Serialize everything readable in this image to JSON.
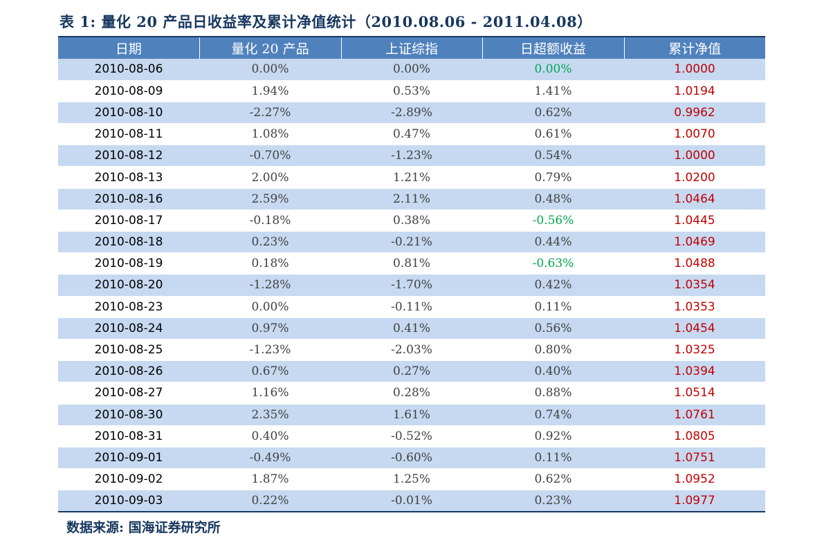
{
  "title": "表 1: 量化 20 产品日收益率及累计净值统计（2010.08.06 - 2011.04.08）",
  "source": "数据来源: 国海证券研究所",
  "colors": {
    "header_bg": "#4f81bd",
    "row_alt": "#c6d9f1",
    "nav_text": "#c00000",
    "green_text": "#00a650",
    "title_text": "#17375e"
  },
  "headers": [
    "日期",
    "量化 20 产品",
    "上证综指",
    "日超额收益",
    "累计净值"
  ],
  "rows": [
    {
      "date": "2010-08-06",
      "product": "0.00%",
      "index": "0.00%",
      "excess": "0.00%",
      "nav": "1.0000",
      "excess_green": true
    },
    {
      "date": "2010-08-09",
      "product": "1.94%",
      "index": "0.53%",
      "excess": "1.41%",
      "nav": "1.0194",
      "excess_green": false
    },
    {
      "date": "2010-08-10",
      "product": "-2.27%",
      "index": "-2.89%",
      "excess": "0.62%",
      "nav": "0.9962",
      "excess_green": false
    },
    {
      "date": "2010-08-11",
      "product": "1.08%",
      "index": "0.47%",
      "excess": "0.61%",
      "nav": "1.0070",
      "excess_green": false
    },
    {
      "date": "2010-08-12",
      "product": "-0.70%",
      "index": "-1.23%",
      "excess": "0.54%",
      "nav": "1.0000",
      "excess_green": false
    },
    {
      "date": "2010-08-13",
      "product": "2.00%",
      "index": "1.21%",
      "excess": "0.79%",
      "nav": "1.0200",
      "excess_green": false
    },
    {
      "date": "2010-08-16",
      "product": "2.59%",
      "index": "2.11%",
      "excess": "0.48%",
      "nav": "1.0464",
      "excess_green": false
    },
    {
      "date": "2010-08-17",
      "product": "-0.18%",
      "index": "0.38%",
      "excess": "-0.56%",
      "nav": "1.0445",
      "excess_green": true
    },
    {
      "date": "2010-08-18",
      "product": "0.23%",
      "index": "-0.21%",
      "excess": "0.44%",
      "nav": "1.0469",
      "excess_green": false
    },
    {
      "date": "2010-08-19",
      "product": "0.18%",
      "index": "0.81%",
      "excess": "-0.63%",
      "nav": "1.0488",
      "excess_green": true
    },
    {
      "date": "2010-08-20",
      "product": "-1.28%",
      "index": "-1.70%",
      "excess": "0.42%",
      "nav": "1.0354",
      "excess_green": false
    },
    {
      "date": "2010-08-23",
      "product": "0.00%",
      "index": "-0.11%",
      "excess": "0.11%",
      "nav": "1.0353",
      "excess_green": false
    },
    {
      "date": "2010-08-24",
      "product": "0.97%",
      "index": "0.41%",
      "excess": "0.56%",
      "nav": "1.0454",
      "excess_green": false
    },
    {
      "date": "2010-08-25",
      "product": "-1.23%",
      "index": "-2.03%",
      "excess": "0.80%",
      "nav": "1.0325",
      "excess_green": false
    },
    {
      "date": "2010-08-26",
      "product": "0.67%",
      "index": "0.27%",
      "excess": "0.40%",
      "nav": "1.0394",
      "excess_green": false
    },
    {
      "date": "2010-08-27",
      "product": "1.16%",
      "index": "0.28%",
      "excess": "0.88%",
      "nav": "1.0514",
      "excess_green": false
    },
    {
      "date": "2010-08-30",
      "product": "2.35%",
      "index": "1.61%",
      "excess": "0.74%",
      "nav": "1.0761",
      "excess_green": false
    },
    {
      "date": "2010-08-31",
      "product": "0.40%",
      "index": "-0.52%",
      "excess": "0.92%",
      "nav": "1.0805",
      "excess_green": false
    },
    {
      "date": "2010-09-01",
      "product": "-0.49%",
      "index": "-0.60%",
      "excess": "0.11%",
      "nav": "1.0751",
      "excess_green": false
    },
    {
      "date": "2010-09-02",
      "product": "1.87%",
      "index": "1.25%",
      "excess": "0.62%",
      "nav": "1.0952",
      "excess_green": false
    },
    {
      "date": "2010-09-03",
      "product": "0.22%",
      "index": "-0.01%",
      "excess": "0.23%",
      "nav": "1.0977",
      "excess_green": false
    }
  ]
}
